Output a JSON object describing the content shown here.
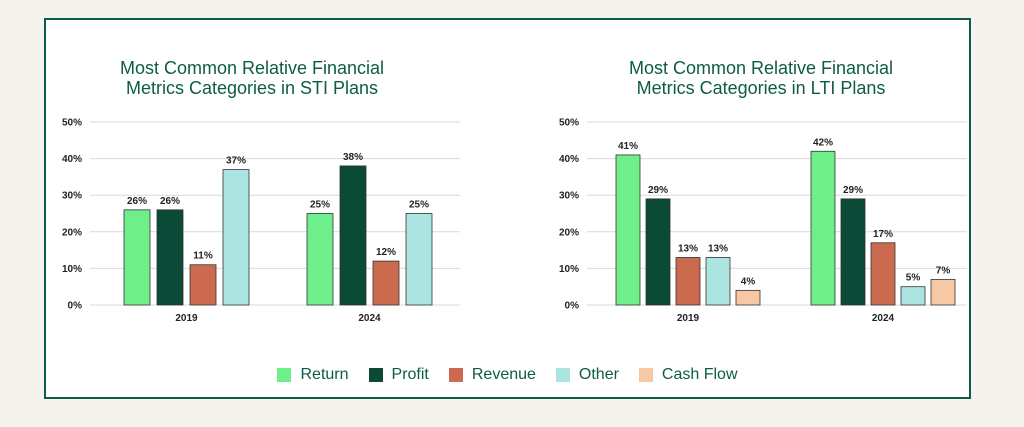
{
  "colors": {
    "Return": "#6fef8a",
    "Profit": "#0b4a37",
    "Revenue": "#cc6a4f",
    "Other": "#ace4e2",
    "Cash Flow": "#f6c9a4",
    "title": "#0d5c45",
    "frame": "#0d5c45"
  },
  "legend": [
    {
      "label": "Return",
      "color": "#6fef8a"
    },
    {
      "label": "Profit",
      "color": "#0b4a37"
    },
    {
      "label": "Revenue",
      "color": "#cc6a4f"
    },
    {
      "label": "Other",
      "color": "#ace4e2"
    },
    {
      "label": "Cash Flow",
      "color": "#f6c9a4"
    }
  ],
  "chart_data": [
    {
      "type": "bar",
      "title_lines": [
        "Most Common Relative Financial",
        "Metrics Categories in STI Plans"
      ],
      "categories": [
        "2019",
        "2024"
      ],
      "series": [
        {
          "name": "Return",
          "values": [
            26,
            25
          ]
        },
        {
          "name": "Profit",
          "values": [
            26,
            38
          ]
        },
        {
          "name": "Revenue",
          "values": [
            11,
            12
          ]
        },
        {
          "name": "Other",
          "values": [
            37,
            25
          ]
        }
      ],
      "data_labels": [
        [
          "26%",
          "26%",
          "11%",
          "37%"
        ],
        [
          "25%",
          "38%",
          "12%",
          "25%"
        ]
      ],
      "yticks": [
        "0%",
        "10%",
        "20%",
        "30%",
        "40%",
        "50%"
      ],
      "ylim": [
        0,
        50
      ],
      "grid": true
    },
    {
      "type": "bar",
      "title_lines": [
        "Most Common Relative Financial",
        "Metrics Categories in LTI Plans"
      ],
      "categories": [
        "2019",
        "2024"
      ],
      "series": [
        {
          "name": "Return",
          "values": [
            41,
            42
          ]
        },
        {
          "name": "Profit",
          "values": [
            29,
            29
          ]
        },
        {
          "name": "Revenue",
          "values": [
            13,
            17
          ]
        },
        {
          "name": "Other",
          "values": [
            13,
            5
          ]
        },
        {
          "name": "Cash Flow",
          "values": [
            4,
            7
          ]
        }
      ],
      "data_labels": [
        [
          "41%",
          "29%",
          "13%",
          "13%",
          "4%"
        ],
        [
          "42%",
          "29%",
          "17%",
          "5%",
          "7%"
        ]
      ],
      "yticks": [
        "0%",
        "10%",
        "20%",
        "30%",
        "40%",
        "50%"
      ],
      "ylim": [
        0,
        50
      ],
      "grid": true
    }
  ]
}
